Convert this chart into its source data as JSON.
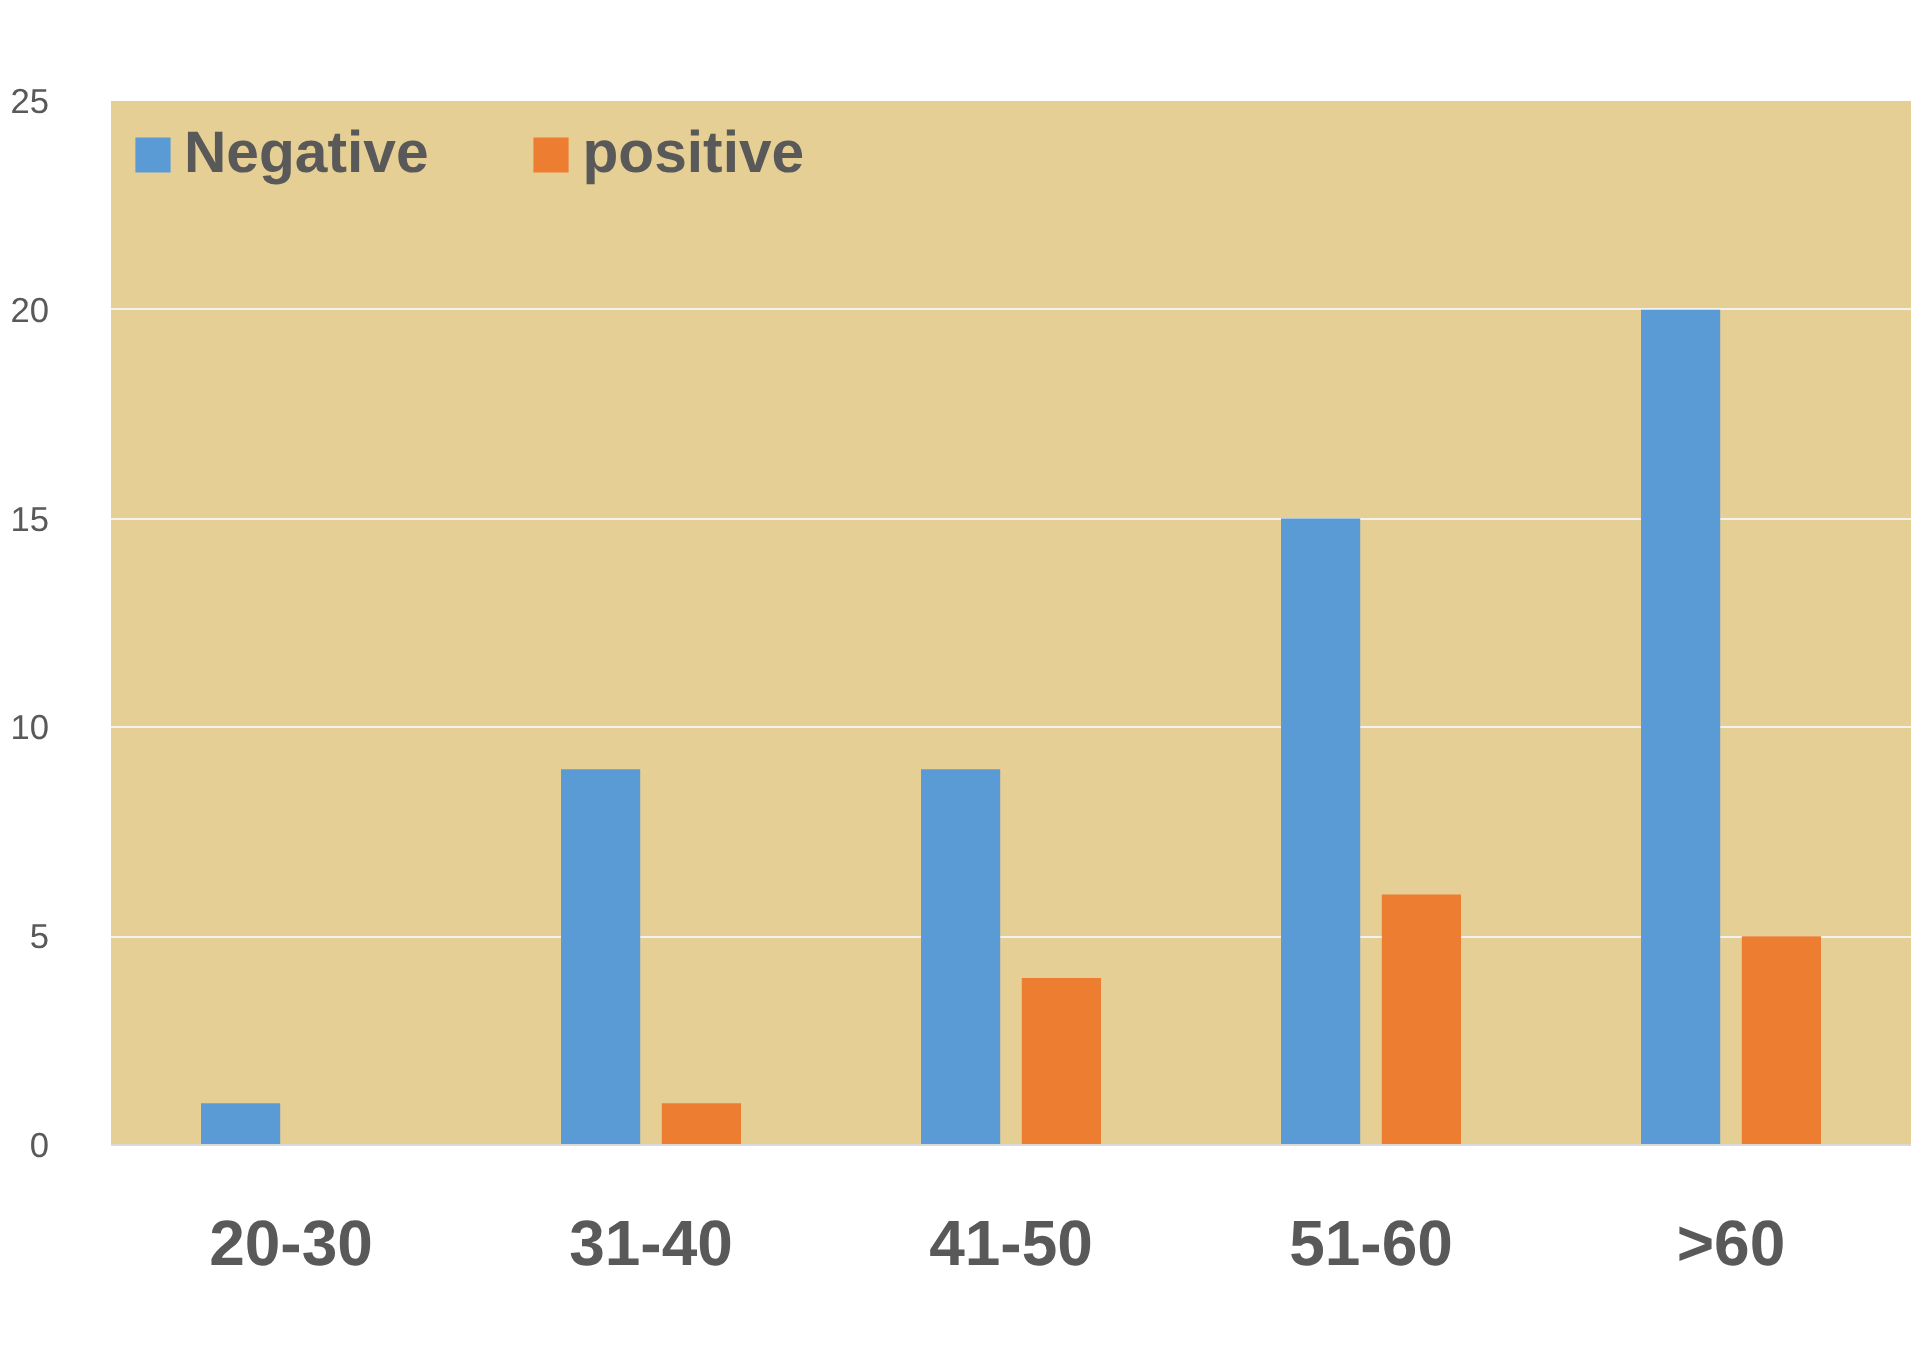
{
  "chart_data": {
    "type": "bar",
    "categories": [
      "20-30",
      "31-40",
      "41-50",
      "51-60",
      ">60"
    ],
    "series": [
      {
        "name": "Negative",
        "color": "#5b9bd5",
        "values": [
          1,
          9,
          9,
          15,
          20
        ]
      },
      {
        "name": "positive",
        "color": "#ed7d31",
        "values": [
          0,
          1,
          4,
          6,
          5
        ]
      }
    ],
    "ylim": [
      0,
      25
    ],
    "yticks": [
      0,
      5,
      10,
      15,
      20,
      25
    ],
    "grid": "y",
    "legend": "top left"
  }
}
